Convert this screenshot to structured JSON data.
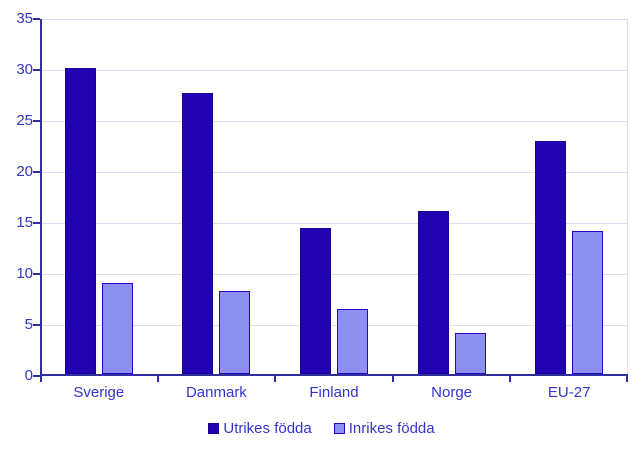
{
  "chart_data": {
    "type": "bar",
    "title": "",
    "xlabel": "",
    "ylabel": "",
    "categories": [
      "Sverige",
      "Danmark",
      "Finland",
      "Norge",
      "EU-27"
    ],
    "series": [
      {
        "name": "Utrikes födda",
        "color": "#2103b1",
        "border_color": "#1b0295",
        "values": [
          30.2,
          27.7,
          14.5,
          16.2,
          23.0
        ]
      },
      {
        "name": "Inrikes födda",
        "color": "#8e90f0",
        "border_color": "#2606c4",
        "values": [
          9.1,
          8.3,
          6.6,
          4.2,
          14.2
        ]
      }
    ],
    "ylim": [
      0,
      35
    ],
    "ytick_step": 5,
    "y_tick_labels": [
      "0",
      "5",
      "10",
      "15",
      "20",
      "25",
      "30",
      "35"
    ],
    "grid": true,
    "legend_position": "bottom-center"
  },
  "colors": {
    "background": "#ffffff",
    "axis": "#2e2e9f",
    "gridline": "#dcdcee",
    "tick_text": "#3434cb",
    "legend_text": "#3434cb"
  }
}
